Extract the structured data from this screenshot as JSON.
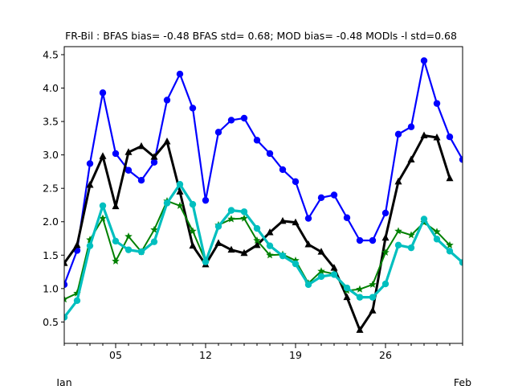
{
  "chart_data": {
    "type": "line",
    "title": "FR-Bil   : BFAS bias= -0.48 BFAS std= 0.68; MOD bias= -0.48 MODls -l std=0.68",
    "xlabel": "",
    "ylabel": "",
    "x": [
      1,
      2,
      3,
      4,
      5,
      6,
      7,
      8,
      9,
      10,
      11,
      12,
      13,
      14,
      15,
      16,
      17,
      18,
      19,
      20,
      21,
      22,
      23,
      24,
      25,
      26,
      27,
      28,
      29,
      30,
      31,
      32
    ],
    "xlim": [
      1,
      32
    ],
    "ylim": [
      0.18,
      4.62
    ],
    "x_ticks": [
      {
        "x": 5,
        "label": "05"
      },
      {
        "x": 12,
        "label": "12"
      },
      {
        "x": 19,
        "label": "19"
      },
      {
        "x": 26,
        "label": "26"
      }
    ],
    "x_month_labels": [
      {
        "x": 1,
        "label": "Jan"
      },
      {
        "x": 32,
        "label": "Feb"
      }
    ],
    "y_ticks": [
      "0.5",
      "1.0",
      "1.5",
      "2.0",
      "2.5",
      "3.0",
      "3.5",
      "4.0",
      "4.5"
    ],
    "grid": false,
    "series": [
      {
        "color": "#0000ff",
        "marker": "circle",
        "width": 2.2,
        "values": [
          1.06,
          1.57,
          2.87,
          3.93,
          3.02,
          2.77,
          2.62,
          2.89,
          3.82,
          4.21,
          3.7,
          2.32,
          3.34,
          3.52,
          3.55,
          3.22,
          3.02,
          2.78,
          2.6,
          2.05,
          2.36,
          2.4,
          2.06,
          1.72,
          1.72,
          2.13,
          3.31,
          3.42,
          4.41,
          3.77,
          3.27,
          2.93
        ]
      },
      {
        "color": "#000000",
        "marker": "triangle",
        "width": 3,
        "values": [
          1.38,
          1.65,
          2.55,
          2.98,
          2.23,
          3.04,
          3.13,
          2.97,
          3.2,
          2.45,
          1.64,
          1.36,
          1.68,
          1.58,
          1.53,
          1.65,
          1.84,
          2.01,
          1.99,
          1.66,
          1.55,
          1.31,
          0.87,
          0.38,
          0.67,
          1.76,
          2.6,
          2.93,
          3.29,
          3.26,
          2.65,
          null
        ]
      },
      {
        "color": "#008000",
        "marker": "star",
        "width": 2,
        "values": [
          0.84,
          0.93,
          1.73,
          2.05,
          1.41,
          1.78,
          1.55,
          1.88,
          2.31,
          2.24,
          1.86,
          1.41,
          1.95,
          2.04,
          2.05,
          1.72,
          1.5,
          1.51,
          1.42,
          1.08,
          1.26,
          1.22,
          0.97,
          0.99,
          1.06,
          1.54,
          1.86,
          1.8,
          1.99,
          1.85,
          1.65,
          null
        ]
      },
      {
        "color": "#00bfbf",
        "marker": "circle",
        "width": 3.2,
        "values": [
          0.57,
          0.82,
          1.64,
          2.24,
          1.71,
          1.58,
          1.55,
          1.7,
          2.28,
          2.56,
          2.26,
          1.4,
          1.93,
          2.17,
          2.15,
          1.9,
          1.64,
          1.49,
          1.37,
          1.06,
          1.18,
          1.21,
          1.01,
          0.87,
          0.87,
          1.07,
          1.65,
          1.61,
          2.04,
          1.74,
          1.56,
          1.39
        ]
      }
    ]
  }
}
